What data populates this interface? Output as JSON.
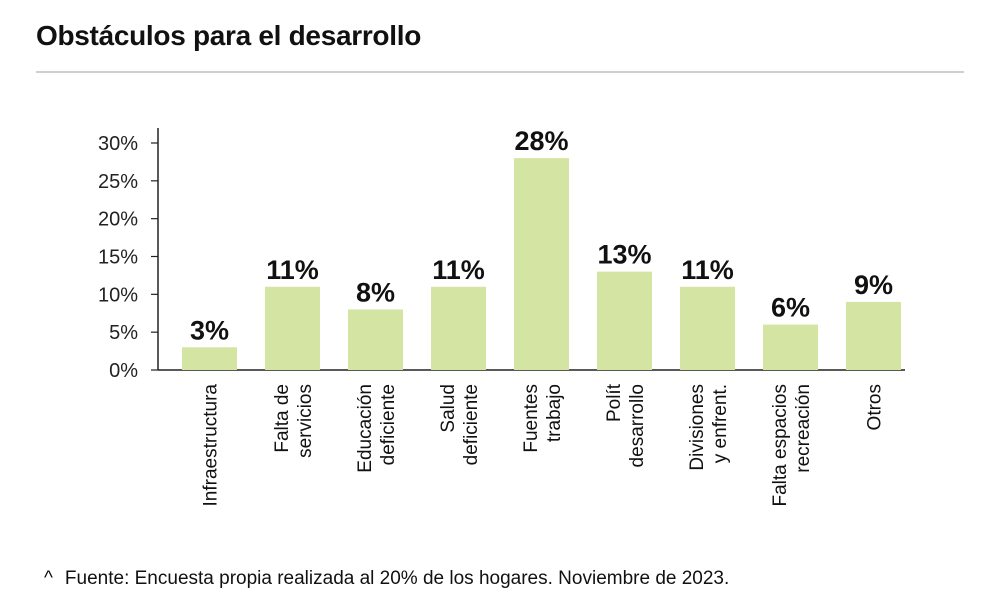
{
  "title": "Obstáculos para el desarrollo",
  "footnote": {
    "marker": "^",
    "text": "Fuente: Encuesta propia realizada al 20% de los hogares. Noviembre de 2023."
  },
  "chart_data": {
    "type": "bar",
    "categories": [
      [
        "Infraestructura"
      ],
      [
        "Falta de",
        "servicios"
      ],
      [
        "Educación",
        "deficiente"
      ],
      [
        "Salud",
        "deficiente"
      ],
      [
        "Fuentes",
        "trabajo"
      ],
      [
        "Polít",
        "desarrollo"
      ],
      [
        "Divisiones",
        "y enfrent."
      ],
      [
        "Falta espacios",
        "recreación"
      ],
      [
        "Otros"
      ]
    ],
    "values": [
      3,
      11,
      8,
      11,
      28,
      13,
      11,
      6,
      9
    ],
    "data_labels": [
      "3%",
      "11%",
      "8%",
      "11%",
      "28%",
      "13%",
      "11%",
      "6%",
      "9%"
    ],
    "y_ticks": [
      "0%",
      "5%",
      "10%",
      "15%",
      "20%",
      "25%",
      "30%"
    ],
    "ylim": [
      0,
      30
    ],
    "bar_color": "#d4e4a3",
    "axis_color": "#222222",
    "grid": false
  }
}
